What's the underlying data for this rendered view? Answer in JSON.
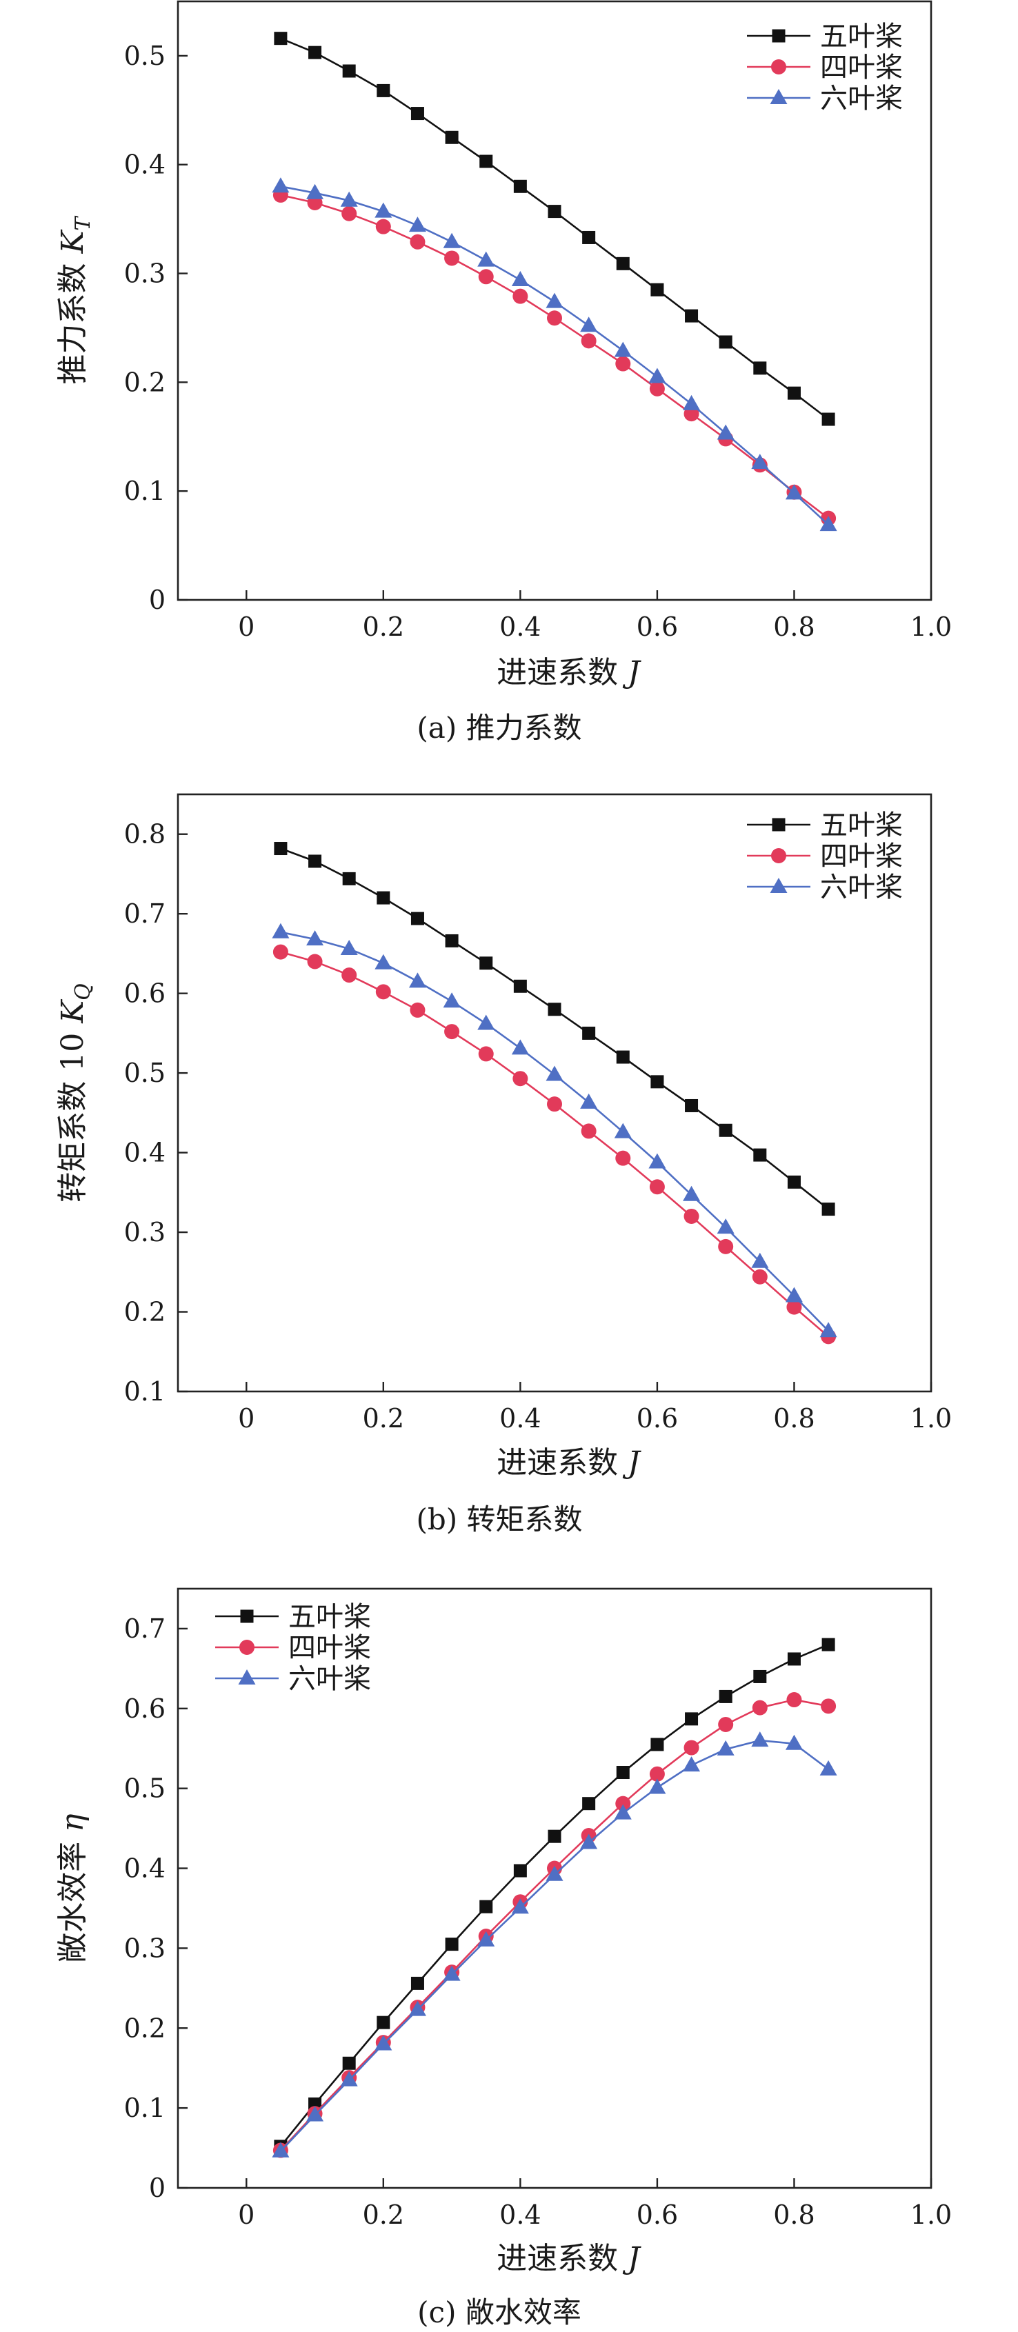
{
  "chart_data": [
    {
      "type": "line",
      "caption": "(a) 推力系数",
      "xlabel": "进速系数",
      "xlabel_var": "J",
      "ylabel": "推力系数",
      "ylabel_var": "K",
      "ylabel_sub": "T",
      "xlim": [
        -0.1,
        1.0
      ],
      "ylim": [
        0,
        0.55
      ],
      "xticks": [
        0,
        0.2,
        0.4,
        0.6,
        0.8,
        1.0
      ],
      "xtick_labels": [
        "0",
        "0.2",
        "0.4",
        "0.6",
        "0.8",
        "1.0"
      ],
      "yticks": [
        0,
        0.1,
        0.2,
        0.3,
        0.4,
        0.5
      ],
      "ytick_labels": [
        "0",
        "0.1",
        "0.2",
        "0.3",
        "0.4",
        "0.5"
      ],
      "legend_position": "top-right",
      "x": [
        0.05,
        0.1,
        0.15,
        0.2,
        0.25,
        0.3,
        0.35,
        0.4,
        0.45,
        0.5,
        0.55,
        0.6,
        0.65,
        0.7,
        0.75,
        0.8,
        0.85
      ],
      "series": [
        {
          "name": "五叶桨",
          "color": "#111111",
          "marker": "square",
          "values": [
            0.516,
            0.503,
            0.486,
            0.468,
            0.447,
            0.425,
            0.403,
            0.38,
            0.357,
            0.333,
            0.309,
            0.285,
            0.261,
            0.237,
            0.213,
            0.19,
            0.166
          ]
        },
        {
          "name": "四叶桨",
          "color": "#e23a5a",
          "marker": "circle",
          "values": [
            0.372,
            0.365,
            0.355,
            0.343,
            0.329,
            0.314,
            0.297,
            0.279,
            0.259,
            0.238,
            0.217,
            0.194,
            0.171,
            0.148,
            0.124,
            0.099,
            0.075
          ]
        },
        {
          "name": "六叶桨",
          "color": "#4f6fc4",
          "marker": "triangle",
          "values": [
            0.38,
            0.374,
            0.367,
            0.357,
            0.344,
            0.329,
            0.312,
            0.294,
            0.274,
            0.252,
            0.229,
            0.205,
            0.18,
            0.153,
            0.126,
            0.098,
            0.069
          ]
        }
      ]
    },
    {
      "type": "line",
      "caption": "(b) 转矩系数",
      "xlabel": "进速系数",
      "xlabel_var": "J",
      "ylabel": "转矩系数 10",
      "ylabel_var": "K",
      "ylabel_sub": "Q",
      "xlim": [
        -0.1,
        1.0
      ],
      "ylim": [
        0.1,
        0.85
      ],
      "xticks": [
        0,
        0.2,
        0.4,
        0.6,
        0.8,
        1.0
      ],
      "xtick_labels": [
        "0",
        "0.2",
        "0.4",
        "0.6",
        "0.8",
        "1.0"
      ],
      "yticks": [
        0.1,
        0.2,
        0.3,
        0.4,
        0.5,
        0.6,
        0.7,
        0.8
      ],
      "ytick_labels": [
        "0.1",
        "0.2",
        "0.3",
        "0.4",
        "0.5",
        "0.6",
        "0.7",
        "0.8"
      ],
      "legend_position": "top-right",
      "x": [
        0.05,
        0.1,
        0.15,
        0.2,
        0.25,
        0.3,
        0.35,
        0.4,
        0.45,
        0.5,
        0.55,
        0.6,
        0.65,
        0.7,
        0.75,
        0.8,
        0.85
      ],
      "series": [
        {
          "name": "五叶桨",
          "color": "#111111",
          "marker": "square",
          "values": [
            0.782,
            0.766,
            0.744,
            0.72,
            0.694,
            0.666,
            0.638,
            0.609,
            0.58,
            0.55,
            0.52,
            0.489,
            0.459,
            0.428,
            0.397,
            0.363,
            0.329
          ]
        },
        {
          "name": "四叶桨",
          "color": "#e23a5a",
          "marker": "circle",
          "values": [
            0.652,
            0.64,
            0.623,
            0.602,
            0.579,
            0.552,
            0.524,
            0.493,
            0.461,
            0.427,
            0.393,
            0.357,
            0.32,
            0.282,
            0.244,
            0.206,
            0.169
          ]
        },
        {
          "name": "六叶桨",
          "color": "#4f6fc4",
          "marker": "triangle",
          "values": [
            0.677,
            0.668,
            0.656,
            0.638,
            0.615,
            0.59,
            0.562,
            0.531,
            0.498,
            0.463,
            0.426,
            0.388,
            0.347,
            0.306,
            0.263,
            0.22,
            0.176
          ]
        }
      ]
    },
    {
      "type": "line",
      "caption": "(c) 敞水效率",
      "xlabel": "进速系数",
      "xlabel_var": "J",
      "ylabel": "敞水效率",
      "ylabel_var": "η",
      "ylabel_sub": "",
      "xlim": [
        -0.1,
        1.0
      ],
      "ylim": [
        0,
        0.75
      ],
      "xticks": [
        0,
        0.2,
        0.4,
        0.6,
        0.8,
        1.0
      ],
      "xtick_labels": [
        "0",
        "0.2",
        "0.4",
        "0.6",
        "0.8",
        "1.0"
      ],
      "yticks": [
        0,
        0.1,
        0.2,
        0.3,
        0.4,
        0.5,
        0.6,
        0.7
      ],
      "ytick_labels": [
        "0",
        "0.1",
        "0.2",
        "0.3",
        "0.4",
        "0.5",
        "0.6",
        "0.7"
      ],
      "legend_position": "top-left",
      "x": [
        0.05,
        0.1,
        0.15,
        0.2,
        0.25,
        0.3,
        0.35,
        0.4,
        0.45,
        0.5,
        0.55,
        0.6,
        0.65,
        0.7,
        0.75,
        0.8,
        0.85
      ],
      "series": [
        {
          "name": "五叶桨",
          "color": "#111111",
          "marker": "square",
          "values": [
            0.052,
            0.105,
            0.156,
            0.207,
            0.256,
            0.305,
            0.352,
            0.397,
            0.44,
            0.481,
            0.52,
            0.555,
            0.587,
            0.615,
            0.64,
            0.662,
            0.68
          ]
        },
        {
          "name": "四叶桨",
          "color": "#e23a5a",
          "marker": "circle",
          "values": [
            0.047,
            0.093,
            0.138,
            0.182,
            0.226,
            0.27,
            0.315,
            0.358,
            0.4,
            0.441,
            0.481,
            0.518,
            0.551,
            0.58,
            0.601,
            0.611,
            0.603
          ]
        },
        {
          "name": "六叶桨",
          "color": "#4f6fc4",
          "marker": "triangle",
          "values": [
            0.046,
            0.091,
            0.135,
            0.18,
            0.223,
            0.267,
            0.31,
            0.351,
            0.392,
            0.432,
            0.469,
            0.501,
            0.529,
            0.549,
            0.56,
            0.556,
            0.524
          ]
        }
      ]
    }
  ]
}
